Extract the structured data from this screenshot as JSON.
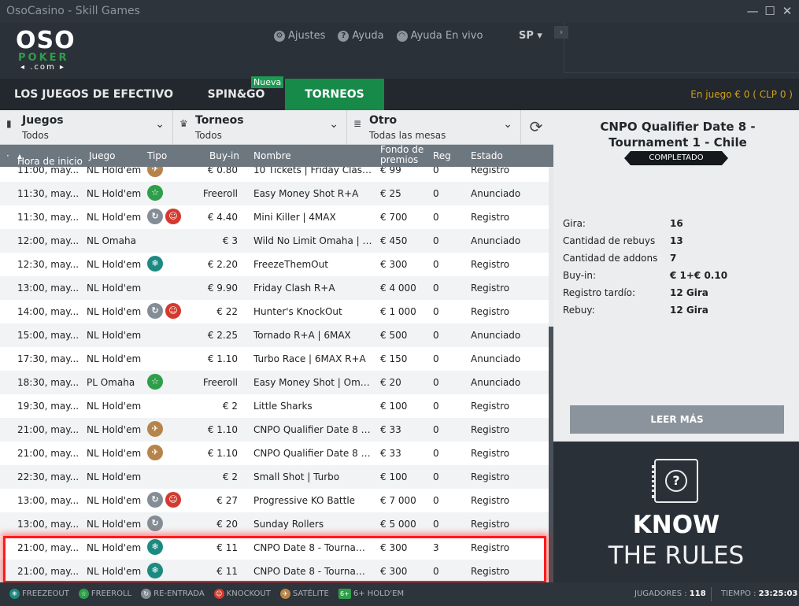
{
  "window": {
    "title": "OsoCasino - Skill Games",
    "minimize": "—",
    "maximize": "☐",
    "close": "✕"
  },
  "logo": {
    "oso": "OSO",
    "poker": "POKER",
    "com": "◂ .com ▸"
  },
  "topnav": {
    "ajustes": "Ajustes",
    "ayuda": "Ayuda",
    "ayuda_vivo": "Ayuda En vivo",
    "lang": "SP ▾",
    "handle": "›"
  },
  "tabs": {
    "efectivo": "LOS JUEGOS DE EFECTIVO",
    "spin": "SPIN&GO",
    "torneos": "TORNEOS",
    "nueva": "Nueva"
  },
  "saldo": "En juego € 0  ( CLP 0 )",
  "filters": [
    {
      "name": "Juegos",
      "value": "Todos",
      "icon": "cards-icon"
    },
    {
      "name": "Torneos",
      "value": "Todos",
      "icon": "trophy-icon"
    },
    {
      "name": "Otro",
      "value": "Todas las mesas",
      "icon": "list-icon"
    }
  ],
  "columns": {
    "hora": "Hora de inicio",
    "juego": "Juego",
    "tipo": "Tipo",
    "buyin": "Buy-in",
    "nombre": "Nombre",
    "fondo": "Fondo de premios",
    "reg": "Reg",
    "estado": "Estado"
  },
  "rows": [
    {
      "time": "11:00, may...",
      "game": "NL Hold'em",
      "types": [
        "sat"
      ],
      "buyin": "€ 0.80",
      "name": "10 Tickets | Friday Clash ...",
      "pool": "€ 99",
      "reg": "0",
      "state": "Registro"
    },
    {
      "time": "11:30, may...",
      "game": "NL Hold'em",
      "types": [
        "freeroll"
      ],
      "buyin": "Freeroll",
      "name": "Easy Money Shot R+A",
      "pool": "€ 25",
      "reg": "0",
      "state": "Anunciado"
    },
    {
      "time": "11:30, may...",
      "game": "NL Hold'em",
      "types": [
        "reentry",
        "knockout"
      ],
      "buyin": "€ 4.40",
      "name": "Mini Killer | 4MAX",
      "pool": "€ 700",
      "reg": "0",
      "state": "Registro"
    },
    {
      "time": "12:00, may...",
      "game": "NL Omaha",
      "types": [],
      "buyin": "€ 3",
      "name": "Wild No Limit Omaha | 6...",
      "pool": "€ 450",
      "reg": "0",
      "state": "Anunciado"
    },
    {
      "time": "12:30, may...",
      "game": "NL Hold'em",
      "types": [
        "freeze"
      ],
      "buyin": "€ 2.20",
      "name": "FreezeThemOut",
      "pool": "€ 300",
      "reg": "0",
      "state": "Registro"
    },
    {
      "time": "13:00, may...",
      "game": "NL Hold'em",
      "types": [],
      "buyin": "€ 9.90",
      "name": "Friday Clash R+A",
      "pool": "€ 4 000",
      "reg": "0",
      "state": "Registro"
    },
    {
      "time": "14:00, may...",
      "game": "NL Hold'em",
      "types": [
        "reentry",
        "knockout"
      ],
      "buyin": "€ 22",
      "name": "Hunter's KnockOut",
      "pool": "€ 1 000",
      "reg": "0",
      "state": "Registro"
    },
    {
      "time": "15:00, may...",
      "game": "NL Hold'em",
      "types": [],
      "buyin": "€ 2.25",
      "name": "Tornado R+A | 6MAX",
      "pool": "€ 500",
      "reg": "0",
      "state": "Anunciado"
    },
    {
      "time": "17:30, may...",
      "game": "NL Hold'em",
      "types": [],
      "buyin": "€ 1.10",
      "name": "Turbo Race | 6MAX R+A",
      "pool": "€ 150",
      "reg": "0",
      "state": "Anunciado"
    },
    {
      "time": "18:30, may...",
      "game": "PL Omaha",
      "types": [
        "freeroll"
      ],
      "buyin": "Freeroll",
      "name": "Easy Money Shot | Oma...",
      "pool": "€ 20",
      "reg": "0",
      "state": "Anunciado"
    },
    {
      "time": "19:30, may...",
      "game": "NL Hold'em",
      "types": [],
      "buyin": "€ 2",
      "name": "Little Sharks",
      "pool": "€ 100",
      "reg": "0",
      "state": "Registro"
    },
    {
      "time": "21:00, may...",
      "game": "NL Hold'em",
      "types": [
        "sat"
      ],
      "buyin": "€ 1.10",
      "name": "CNPO Qualifier Date 8 - T...",
      "pool": "€ 33",
      "reg": "0",
      "state": "Registro"
    },
    {
      "time": "21:00, may...",
      "game": "NL Hold'em",
      "types": [
        "sat"
      ],
      "buyin": "€ 1.10",
      "name": "CNPO Qualifier Date 8 - T...",
      "pool": "€ 33",
      "reg": "0",
      "state": "Registro"
    },
    {
      "time": "22:30, may...",
      "game": "NL Hold'em",
      "types": [],
      "buyin": "€ 2",
      "name": "Small Shot | Turbo",
      "pool": "€ 100",
      "reg": "0",
      "state": "Registro"
    },
    {
      "time": "13:00, may...",
      "game": "NL Hold'em",
      "types": [
        "reentry",
        "knockout"
      ],
      "buyin": "€ 27",
      "name": "Progressive KO Battle",
      "pool": "€ 7 000",
      "reg": "0",
      "state": "Registro"
    },
    {
      "time": "13:00, may...",
      "game": "NL Hold'em",
      "types": [
        "reentry"
      ],
      "buyin": "€ 20",
      "name": "Sunday Rollers",
      "pool": "€ 5 000",
      "reg": "0",
      "state": "Registro"
    },
    {
      "time": "21:00, may...",
      "game": "NL Hold'em",
      "types": [
        "freeze"
      ],
      "buyin": "€ 11",
      "name": "CNPO Date 8 - Tourname...",
      "pool": "€ 300",
      "reg": "3",
      "state": "Registro"
    },
    {
      "time": "21:00, may...",
      "game": "NL Hold'em",
      "types": [
        "freeze"
      ],
      "buyin": "€ 11",
      "name": "CNPO Date 8 - Tourname...",
      "pool": "€ 300",
      "reg": "0",
      "state": "Registro"
    }
  ],
  "detail": {
    "title": "CNPO Qualifier Date 8 - Tournament 1 - Chile",
    "badge": "COMPLETADO",
    "info": [
      {
        "k": "Gira:",
        "v": "16"
      },
      {
        "k": "Cantidad de rebuys",
        "v": "13"
      },
      {
        "k": "Cantidad de addons",
        "v": "7"
      },
      {
        "k": "Buy-in:",
        "v": "€ 1+€ 0.10"
      },
      {
        "k": "Registro tardío:",
        "v": "12 Gira"
      },
      {
        "k": "Rebuy:",
        "v": "12 Gira"
      }
    ],
    "leer": "LEER MÁS"
  },
  "rules": {
    "know": "KNOW",
    "the_rules": "THE RULES"
  },
  "legend": [
    {
      "key": "freeze",
      "label": "FREEZEOUT"
    },
    {
      "key": "freeroll",
      "label": "FREEROLL"
    },
    {
      "key": "reentry",
      "label": "RE-ENTRADA"
    },
    {
      "key": "knockout",
      "label": "KNOCKOUT"
    },
    {
      "key": "sat",
      "label": "SATÉLITE"
    },
    {
      "key": "six",
      "label": "6+ HOLD'EM"
    }
  ],
  "status": {
    "jugadores_label": "JUGADORES :",
    "jugadores": "118",
    "tiempo_label": "TIEMPO :",
    "tiempo": "23:25:03"
  },
  "colors": {
    "accent_green": "#178a4a",
    "balance": "#d4a017",
    "highlight": "#ff1a1a"
  }
}
